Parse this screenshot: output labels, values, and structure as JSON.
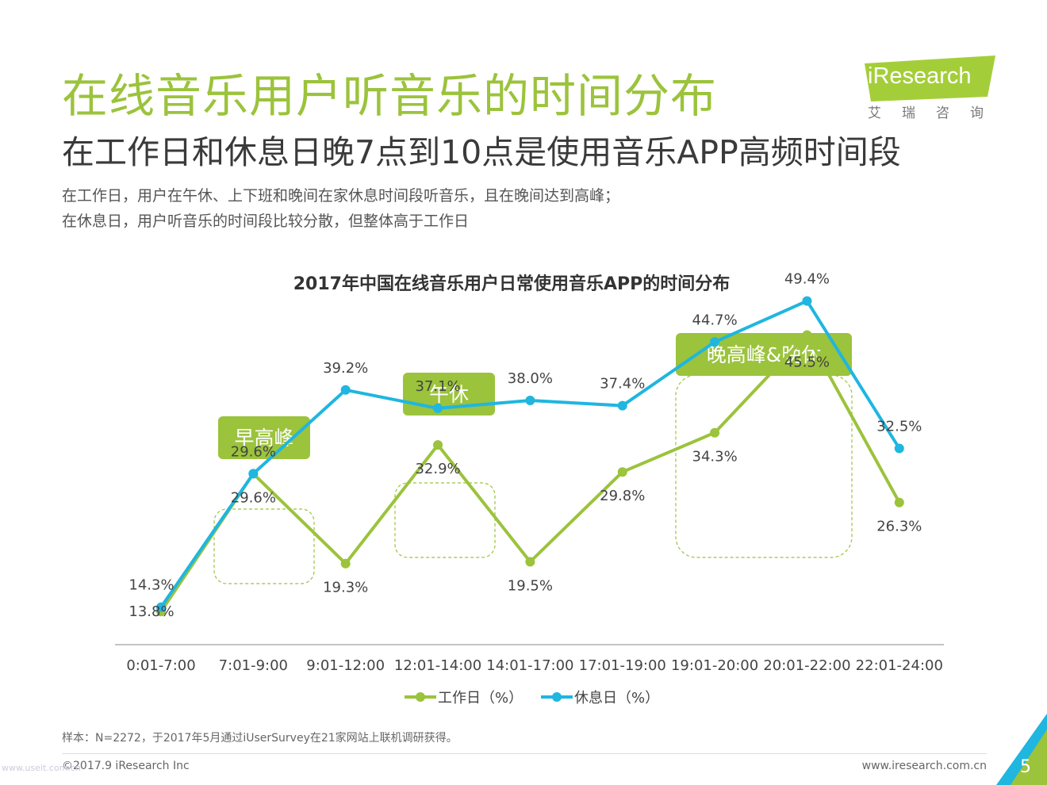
{
  "header": {
    "title": "在线音乐用户听音乐的时间分布",
    "subtitle": "在工作日和休息日晚7点到10点是使用音乐APP高频时间段",
    "desc_lines": [
      "在工作日，用户在午休、上下班和晚间在家休息时间段听音乐，且在晚间达到高峰；",
      "在休息日，用户听音乐的时间段比较分散，但整体高于工作日"
    ]
  },
  "logo": {
    "word": "iResearch",
    "sub": "艾瑞咨询",
    "color": "#a4ce39"
  },
  "chart_data": {
    "type": "line",
    "title": "2017年中国在线音乐用户日常使用音乐APP的时间分布",
    "categories": [
      "0:01-7:00",
      "7:01-9:00",
      "9:01-12:00",
      "12:01-14:00",
      "14:01-17:00",
      "17:01-19:00",
      "19:01-20:00",
      "20:01-22:00",
      "22:01-24:00"
    ],
    "series": [
      {
        "name": "工作日（%）",
        "values": [
          13.8,
          29.6,
          19.3,
          32.9,
          19.5,
          29.8,
          34.3,
          45.5,
          26.3
        ],
        "labels": [
          "13.8%",
          "29.6%",
          "19.3%",
          "32.9%",
          "19.5%",
          "29.8%",
          "34.3%",
          "45.5%",
          "26.3%"
        ],
        "color": "#9bc33c"
      },
      {
        "name": "休息日（%）",
        "values": [
          14.3,
          29.6,
          39.2,
          37.1,
          38.0,
          37.4,
          44.7,
          49.4,
          32.5
        ],
        "labels": [
          "14.3%",
          "29.6%",
          "39.2%",
          "37.1%",
          "38.0%",
          "37.4%",
          "44.7%",
          "49.4%",
          "32.5%"
        ],
        "color": "#1fb6e0"
      }
    ],
    "annotations": [
      {
        "text": "早高峰",
        "categories": [
          "7:01-9:00"
        ]
      },
      {
        "text": "午休",
        "categories": [
          "12:01-14:00"
        ]
      },
      {
        "text": "晚高峰&晚休",
        "categories": [
          "19:01-20:00",
          "20:01-22:00"
        ]
      }
    ],
    "legend_position": "bottom",
    "grid": false
  },
  "footer": {
    "note": "样本：N=2272，于2017年5月通过iUserSurvey在21家网站上联机调研获得。",
    "copyright": "©2017.9 iResearch Inc",
    "website": "www.iresearch.com.cn",
    "page": "5"
  },
  "watermark": "www.useit.com.cn"
}
